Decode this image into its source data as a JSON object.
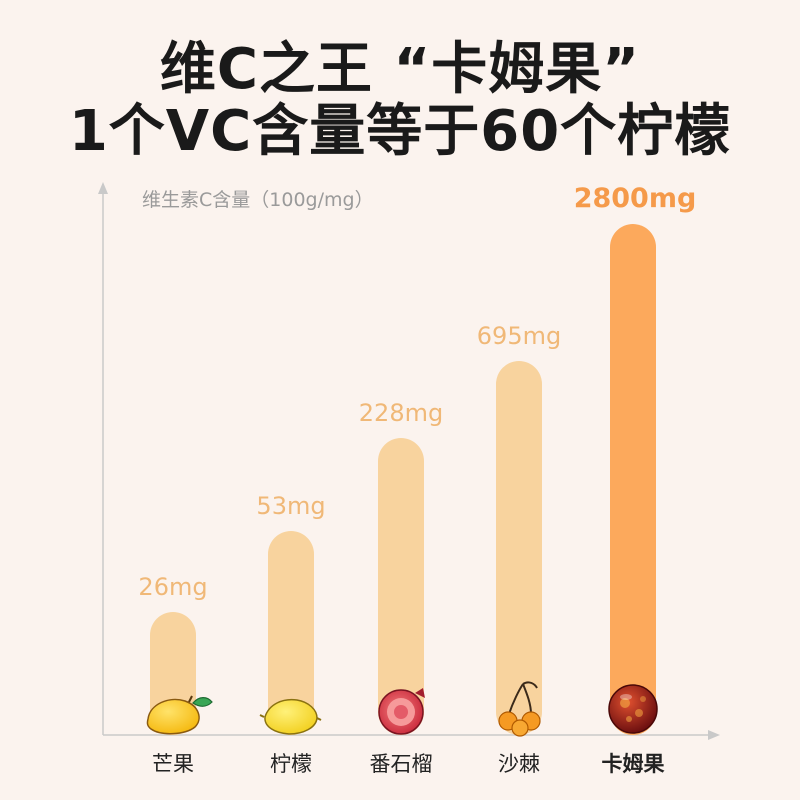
{
  "title": {
    "line1": "维C之王 “卡姆果”",
    "line2": "1个VC含量等于60个柠檬"
  },
  "colors": {
    "bar": "#f8d39e",
    "bar_highlight": "#fca95c",
    "value_label": "#f0b877",
    "value_label_highlight": "#f59a4a",
    "axis": "#c9c9c9"
  },
  "chart_data": {
    "type": "bar",
    "ylabel": "维生素C含量（100g/mg）",
    "categories": [
      "芒果",
      "柠檬",
      "番石榴",
      "沙棘",
      "卡姆果"
    ],
    "values": [
      26,
      53,
      228,
      695,
      2800
    ],
    "value_labels": [
      "26mg",
      "53mg",
      "228mg",
      "695mg",
      "2800mg"
    ],
    "icons": [
      "mango-icon",
      "lemon-icon",
      "guava-icon",
      "seabuckthorn-icon",
      "camu-camu-icon"
    ],
    "highlight_index": 4,
    "scale": "non-linear (display)",
    "grid": false,
    "legend": "none"
  }
}
